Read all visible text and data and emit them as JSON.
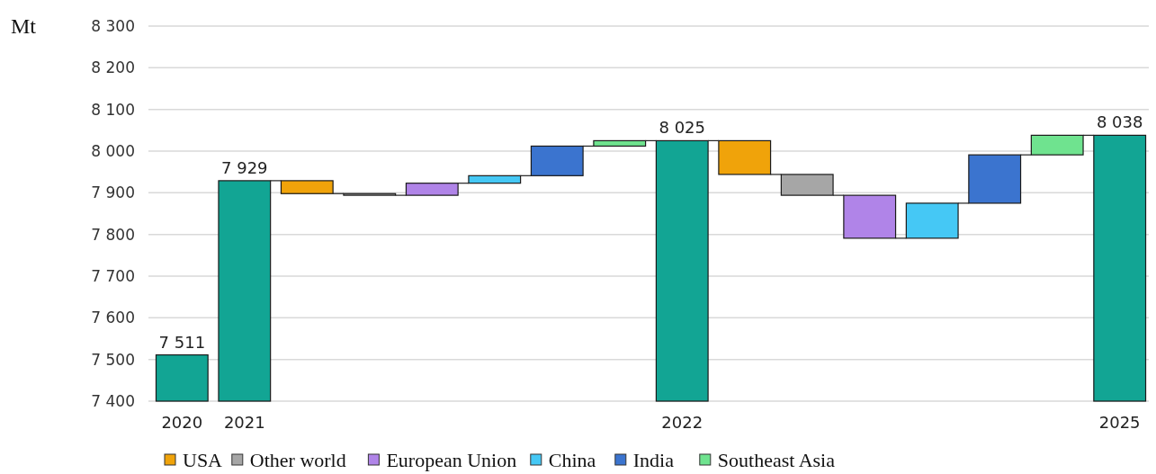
{
  "chart_data": {
    "type": "bar",
    "ylabel": "Mt",
    "categories": [
      "2020",
      "2021",
      null,
      null,
      null,
      null,
      null,
      null,
      "2022",
      null,
      null,
      null,
      null,
      null,
      null,
      "2025"
    ],
    "series": [
      {
        "color": "#12a594",
        "values": [
          7511,
          7929,
          null,
          null,
          null,
          null,
          null,
          null,
          8025,
          null,
          null,
          null,
          null,
          null,
          null,
          8038
        ],
        "value_labels": [
          "7 511",
          "7 929",
          null,
          null,
          null,
          null,
          null,
          null,
          "8 025",
          null,
          null,
          null,
          null,
          null,
          null,
          "8 038"
        ]
      },
      {
        "name": "USA",
        "color": "#f0a30a",
        "values": [
          null,
          null,
          -31,
          null,
          null,
          null,
          null,
          null,
          null,
          -81,
          null,
          null,
          null,
          null,
          null,
          null
        ],
        "base": [
          null,
          null,
          7929,
          null,
          null,
          null,
          null,
          null,
          null,
          8025,
          null,
          null,
          null,
          null,
          null,
          null
        ]
      },
      {
        "name": "Other world",
        "color": "#a6a6a6",
        "values": [
          null,
          null,
          null,
          -4,
          null,
          null,
          null,
          null,
          null,
          null,
          -50,
          null,
          null,
          null,
          null,
          null
        ],
        "base": [
          null,
          null,
          null,
          7898,
          null,
          null,
          null,
          null,
          null,
          null,
          7944,
          null,
          null,
          null,
          null,
          null
        ]
      },
      {
        "name": "European Union",
        "color": "#b084e8",
        "values": [
          null,
          null,
          null,
          null,
          29,
          null,
          null,
          null,
          null,
          null,
          null,
          -103,
          null,
          null,
          null,
          null
        ],
        "base": [
          null,
          null,
          null,
          null,
          7894,
          null,
          null,
          null,
          null,
          null,
          null,
          7894,
          null,
          null,
          null,
          null
        ]
      },
      {
        "name": "China",
        "color": "#45c8f5",
        "values": [
          null,
          null,
          null,
          null,
          null,
          18,
          null,
          null,
          null,
          null,
          null,
          null,
          84,
          null,
          null,
          null
        ],
        "base": [
          null,
          null,
          null,
          null,
          null,
          7923,
          null,
          null,
          null,
          null,
          null,
          null,
          7791,
          null,
          null,
          null
        ]
      },
      {
        "name": "India",
        "color": "#3b74cf",
        "values": [
          null,
          null,
          null,
          null,
          null,
          null,
          71,
          null,
          null,
          null,
          null,
          null,
          null,
          116,
          null,
          null
        ],
        "base": [
          null,
          null,
          null,
          null,
          null,
          null,
          7941,
          null,
          null,
          null,
          null,
          null,
          null,
          7875,
          null,
          null
        ]
      },
      {
        "name": "Southeast Asia",
        "color": "#6fe38f",
        "values": [
          null,
          null,
          null,
          null,
          null,
          null,
          null,
          13,
          null,
          null,
          null,
          null,
          null,
          null,
          47,
          null
        ],
        "base": [
          null,
          null,
          null,
          null,
          null,
          null,
          null,
          8012,
          null,
          null,
          null,
          null,
          null,
          null,
          7991,
          null
        ]
      }
    ],
    "ylim": [
      7400,
      8300
    ],
    "yticks": [
      {
        "value": 7400,
        "label": "7 400"
      },
      {
        "value": 7500,
        "label": "7 500"
      },
      {
        "value": 7600,
        "label": "7 600"
      },
      {
        "value": 7700,
        "label": "7 700"
      },
      {
        "value": 7800,
        "label": "7 800"
      },
      {
        "value": 7900,
        "label": "7 900"
      },
      {
        "value": 8000,
        "label": "8 000"
      },
      {
        "value": 8100,
        "label": "8 100"
      },
      {
        "value": 8200,
        "label": "8 200"
      },
      {
        "value": 8300,
        "label": "8 300"
      }
    ],
    "grid": "y",
    "legend": "bottom"
  }
}
